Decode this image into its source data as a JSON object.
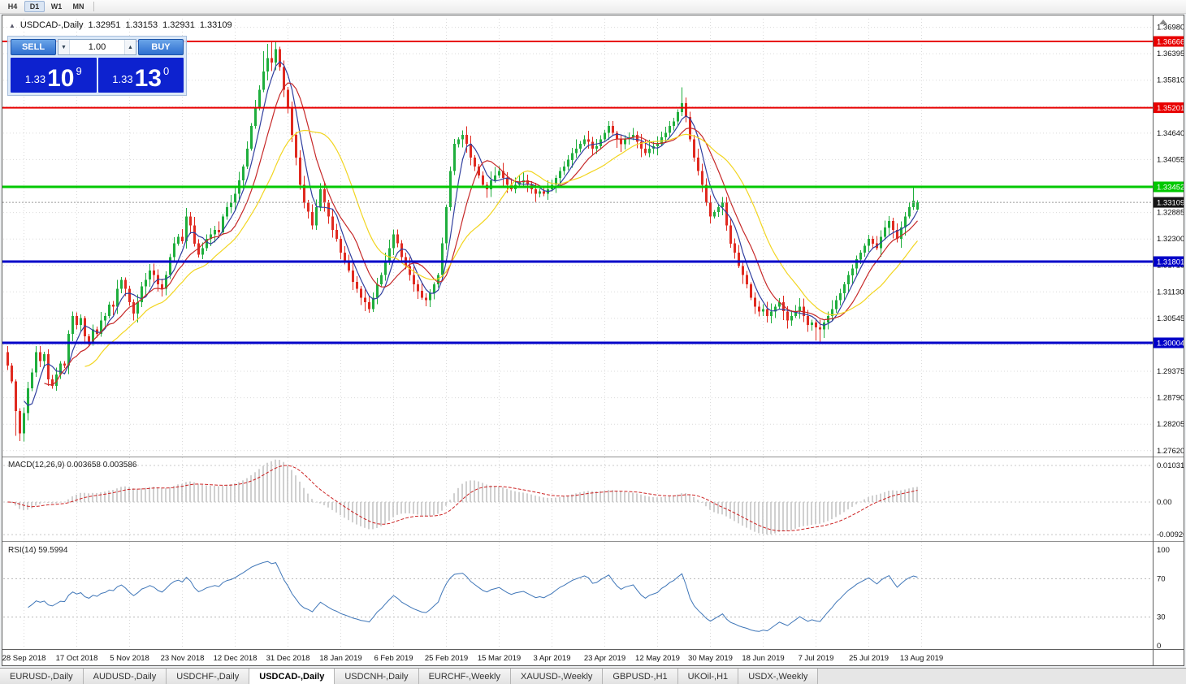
{
  "toolbar": {
    "timeframes": [
      {
        "label": "H4",
        "active": false
      },
      {
        "label": "D1",
        "active": true
      },
      {
        "label": "W1",
        "active": false
      },
      {
        "label": "MN",
        "active": false
      }
    ]
  },
  "chart_header": {
    "collapse_icon": "▲",
    "symbol_period": "USDCAD-,Daily",
    "open": "1.32951",
    "high": "1.33153",
    "low": "1.32931",
    "close": "1.33109"
  },
  "one_click": {
    "sell_label": "SELL",
    "buy_label": "BUY",
    "volume": "1.00",
    "volume_down_icon": "▼",
    "volume_up_icon": "▲",
    "sell_price": {
      "base": "1.33",
      "big": "10",
      "sup": "9"
    },
    "buy_price": {
      "base": "1.33",
      "big": "13",
      "sup": "0"
    }
  },
  "macd_panel": {
    "label": "MACD(12,26,9)",
    "value_main": "0.003658",
    "value_signal": "0.003586",
    "axis": [
      "0.010311",
      "0.00",
      "-0.00920"
    ]
  },
  "rsi_panel": {
    "label": "RSI(14)",
    "value": "59.5994",
    "axis": [
      "100",
      "70",
      "30",
      "0"
    ]
  },
  "price_axis_labels": [
    "1.36980",
    "1.36395",
    "1.35810",
    "1.35225",
    "1.34640",
    "1.34055",
    "1.33470",
    "1.32885",
    "1.32300",
    "1.31715",
    "1.31130",
    "1.30545",
    "1.29960",
    "1.29375",
    "1.28790",
    "1.28205",
    "1.27620"
  ],
  "tabs": [
    {
      "label": "EURUSD-,Daily",
      "active": false
    },
    {
      "label": "AUDUSD-,Daily",
      "active": false
    },
    {
      "label": "USDCHF-,Daily",
      "active": false
    },
    {
      "label": "USDCAD-,Daily",
      "active": true
    },
    {
      "label": "USDCNH-,Daily",
      "active": false
    },
    {
      "label": "EURCHF-,Weekly",
      "active": false
    },
    {
      "label": "XAUUSD-,Weekly",
      "active": false
    },
    {
      "label": "GBPUSD-,H1",
      "active": false
    },
    {
      "label": "UKOil-,H1",
      "active": false
    },
    {
      "label": "USDX-,Weekly",
      "active": false
    }
  ],
  "chart_data": {
    "type": "candlestick",
    "symbol": "USDCAD-",
    "timeframe": "Daily",
    "last_ohlc": {
      "open": 1.32951,
      "high": 1.33153,
      "low": 1.32931,
      "close": 1.33109
    },
    "colors": {
      "bull": "#1fae3d",
      "bear": "#e02a20",
      "grid": "#dadada",
      "ma_fast": "#303f9f",
      "ma_mid": "#c62828",
      "ma_slow": "#f2d520",
      "macd_bar": "#c4c4c4",
      "macd_signal": "#cc2222",
      "rsi_line": "#3f76b8"
    },
    "closes": [
      1.295,
      1.2915,
      1.285,
      1.28,
      1.2845,
      1.29,
      1.2935,
      1.298,
      1.296,
      1.2975,
      1.292,
      1.2905,
      1.293,
      1.2955,
      1.295,
      1.302,
      1.306,
      1.304,
      1.3055,
      1.3015,
      1.3,
      1.303,
      1.302,
      1.305,
      1.306,
      1.3085,
      1.308,
      1.312,
      1.314,
      1.312,
      1.309,
      1.3065,
      1.309,
      1.3125,
      1.314,
      1.316,
      1.315,
      1.313,
      1.312,
      1.315,
      1.319,
      1.322,
      1.3235,
      1.3225,
      1.328,
      1.326,
      1.322,
      1.3195,
      1.321,
      1.323,
      1.324,
      1.325,
      1.3245,
      1.328,
      1.33,
      1.331,
      1.333,
      1.336,
      1.339,
      1.343,
      1.348,
      1.352,
      1.356,
      1.36,
      1.363,
      1.362,
      1.365,
      1.361,
      1.356,
      1.352,
      1.346,
      1.341,
      1.335,
      1.331,
      1.329,
      1.326,
      1.33,
      1.334,
      1.331,
      1.328,
      1.325,
      1.323,
      1.32,
      1.318,
      1.316,
      1.3135,
      1.312,
      1.31,
      1.309,
      1.3075,
      1.31,
      1.313,
      1.315,
      1.318,
      1.321,
      1.324,
      1.322,
      1.319,
      1.317,
      1.315,
      1.313,
      1.3115,
      1.31,
      1.3095,
      1.311,
      1.313,
      1.315,
      1.322,
      1.33,
      1.338,
      1.344,
      1.345,
      1.346,
      1.344,
      1.341,
      1.339,
      1.337,
      1.335,
      1.334,
      1.336,
      1.337,
      1.338,
      1.3365,
      1.335,
      1.334,
      1.335,
      1.3355,
      1.336,
      1.335,
      1.334,
      1.333,
      1.3335,
      1.333,
      1.334,
      1.335,
      1.3365,
      1.338,
      1.339,
      1.3405,
      1.342,
      1.343,
      1.344,
      1.345,
      1.3445,
      1.343,
      1.3435,
      1.345,
      1.3465,
      1.348,
      1.3465,
      1.345,
      1.344,
      1.345,
      1.3455,
      1.346,
      1.3445,
      1.343,
      1.342,
      1.343,
      1.3435,
      1.344,
      1.3455,
      1.3465,
      1.348,
      1.349,
      1.351,
      1.353,
      1.35,
      1.345,
      1.341,
      1.338,
      1.335,
      1.331,
      1.328,
      1.329,
      1.33,
      1.331,
      1.326,
      1.322,
      1.32,
      1.317,
      1.315,
      1.313,
      1.31,
      1.308,
      1.307,
      1.3075,
      1.306,
      1.307,
      1.308,
      1.309,
      1.307,
      1.305,
      1.306,
      1.307,
      1.308,
      1.306,
      1.304,
      1.3045,
      1.3035,
      1.303,
      1.3045,
      1.306,
      1.3075,
      1.3095,
      1.311,
      1.313,
      1.315,
      1.3165,
      1.3185,
      1.32,
      1.3215,
      1.323,
      1.322,
      1.321,
      1.3235,
      1.3255,
      1.327,
      1.325,
      1.323,
      1.3255,
      1.328,
      1.33,
      1.3315,
      1.33109
    ],
    "wick_overrides": {
      "2": {
        "low": 1.2795
      },
      "3": {
        "low": 1.2783
      },
      "63": {
        "high": 1.3645
      },
      "64": {
        "high": 1.3661
      },
      "65": {
        "high": 1.3666
      },
      "66": {
        "high": 1.3668
      },
      "67": {
        "high": 1.3655
      },
      "112": {
        "high": 1.347
      },
      "166": {
        "high": 1.3565
      },
      "199": {
        "low": 1.3006
      },
      "200": {
        "low": 1.3003
      },
      "223": {
        "high": 1.3344
      },
      "224": {
        "open": 1.32951,
        "high": 1.33153,
        "low": 1.32931,
        "close": 1.33109
      }
    },
    "moving_averages": [
      {
        "period": 5,
        "color": "#303f9f"
      },
      {
        "period": 10,
        "color": "#c62828"
      },
      {
        "period": 20,
        "color": "#f2d520"
      }
    ],
    "hlines": [
      {
        "price": 1.36666,
        "label": "1.36666",
        "color": "#e80000",
        "width": 2
      },
      {
        "price": 1.35201,
        "label": "1.35201",
        "color": "#e80000",
        "width": 2
      },
      {
        "price": 1.33452,
        "label": "1.33452",
        "color": "#00c800",
        "width": 3
      },
      {
        "price": 1.31801,
        "label": "1.31801",
        "color": "#0000c8",
        "width": 3
      },
      {
        "price": 1.30004,
        "label": "1.30004",
        "color": "#0000c8",
        "width": 3
      }
    ],
    "current_price": {
      "value": 1.33109,
      "label": "1.33109",
      "badge_color": "#151515"
    },
    "macd": {
      "fast": 12,
      "slow": 26,
      "signal": 9
    },
    "rsi": {
      "period": 14,
      "levels": [
        70,
        30
      ]
    },
    "date_labels": {
      "first_index": 4,
      "step": 13,
      "labels": [
        "28 Sep 2018",
        "17 Oct 2018",
        "5 Nov 2018",
        "23 Nov 2018",
        "12 Dec 2018",
        "31 Dec 2018",
        "18 Jan 2019",
        "6 Feb 2019",
        "25 Feb 2019",
        "15 Mar 2019",
        "3 Apr 2019",
        "23 Apr 2019",
        "12 May 2019",
        "30 May 2019",
        "18 Jun 2019",
        "7 Jul 2019",
        "25 Jul 2019",
        "13 Aug 2019"
      ]
    }
  }
}
